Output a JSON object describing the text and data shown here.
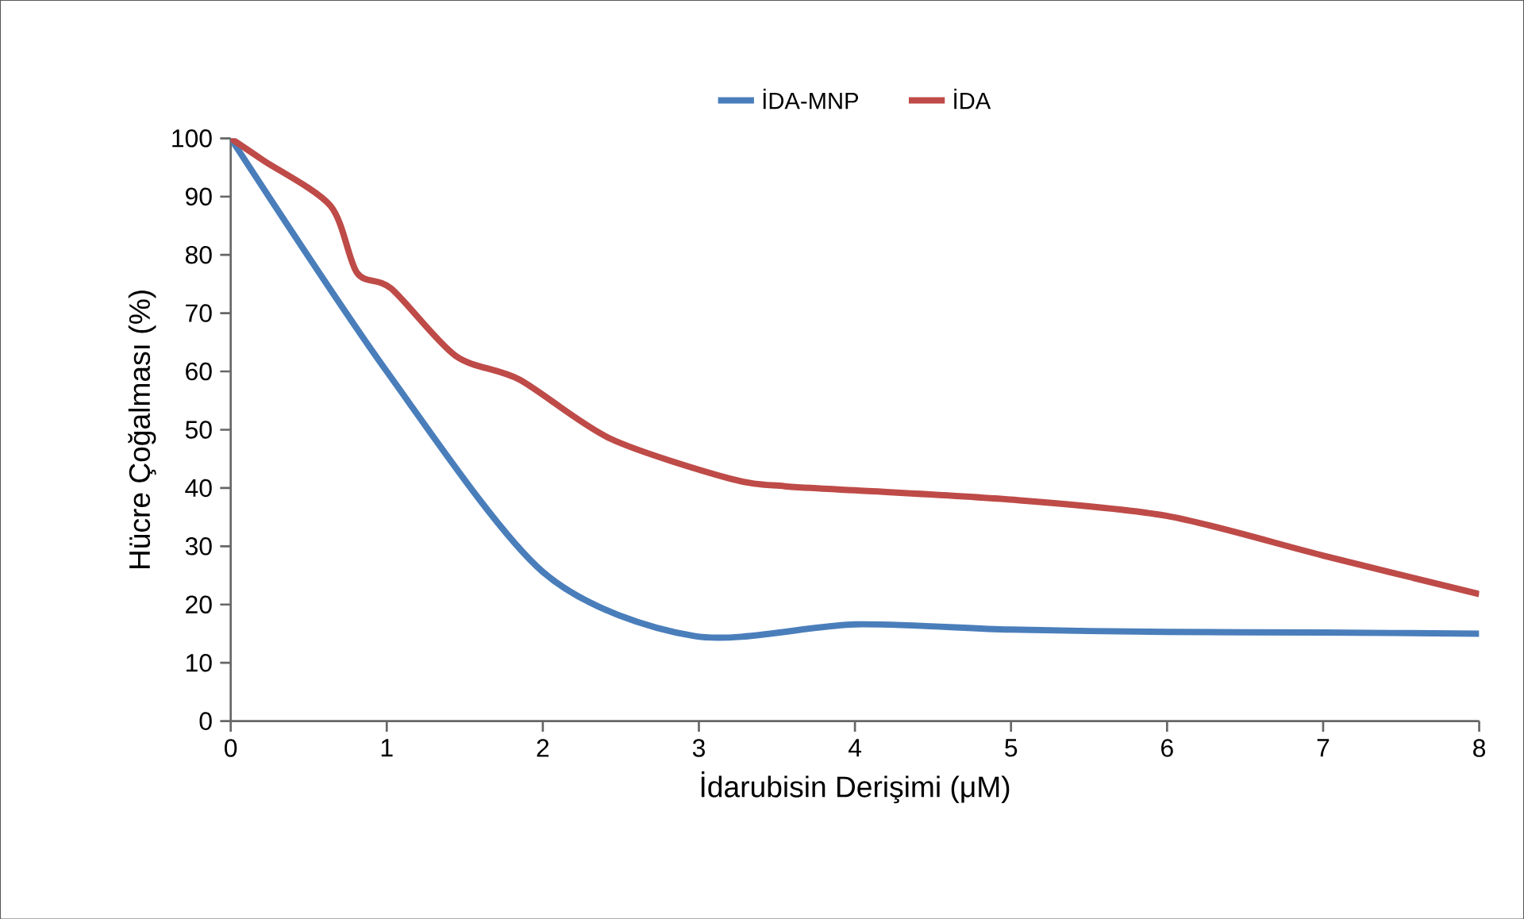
{
  "chart_data": {
    "type": "line",
    "xlabel": "İdarubisin Derişimi (μM)",
    "ylabel": "Hücre Çoğalması (%)",
    "xlim": [
      0,
      8
    ],
    "ylim": [
      0,
      100
    ],
    "xticks": [
      0,
      1,
      2,
      3,
      4,
      5,
      6,
      7,
      8
    ],
    "yticks": [
      0,
      10,
      20,
      30,
      40,
      50,
      60,
      70,
      80,
      90,
      100
    ],
    "grid": false,
    "legend": "top",
    "marker": "none",
    "line_style": "solid",
    "series": [
      {
        "name": "İDA-MNP",
        "color": "#4a7ebb",
        "x": [
          0,
          1,
          2,
          2.97,
          4,
          5,
          6,
          7,
          8
        ],
        "values": [
          100,
          60,
          25.6,
          14.6,
          16.6,
          15.7,
          15.3,
          15.2,
          15.0
        ]
      },
      {
        "name": "İDA",
        "color": "#be4b48",
        "x": [
          0,
          0.21,
          0.64,
          0.81,
          1.03,
          1.44,
          1.85,
          2.43,
          3.2,
          3.55,
          4,
          5,
          6,
          7,
          8
        ],
        "values": [
          100,
          96.2,
          88.4,
          76.9,
          74.2,
          62.7,
          58.6,
          48.5,
          41.6,
          40.3,
          39.6,
          38,
          35.2,
          28.4,
          21.8
        ]
      }
    ]
  }
}
